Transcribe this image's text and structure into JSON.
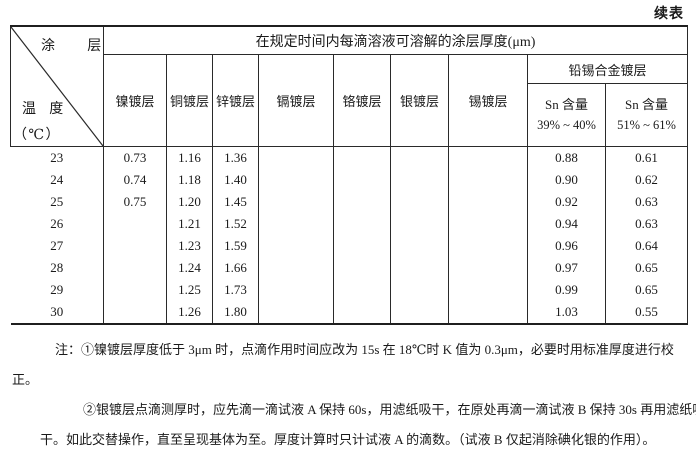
{
  "page": {
    "continuation_label": "续表"
  },
  "table": {
    "corner": {
      "top_label": "涂层",
      "bottom_label_line1": "温 度",
      "bottom_label_line2": "（℃）"
    },
    "span_header": "在规定时间内每滴溶液可溶解的涂层厚度(μm)",
    "column_headers": [
      "镍镀层",
      "铜镀层",
      "锌镀层",
      "镉镀层",
      "铬镀层",
      "银镀层",
      "锡镀层"
    ],
    "pbsn_group": {
      "label": "铅锡合金镀层",
      "sub_columns": [
        {
          "line1": "Sn 含量",
          "line2": "39% ~ 40%"
        },
        {
          "line1": "Sn 含量",
          "line2": "51% ~ 61%"
        }
      ]
    },
    "rows": [
      [
        "23",
        "0.73",
        "1.16",
        "1.36",
        "",
        "",
        "",
        "",
        "0.88",
        "0.61"
      ],
      [
        "24",
        "0.74",
        "1.18",
        "1.40",
        "",
        "",
        "",
        "",
        "0.90",
        "0.62"
      ],
      [
        "25",
        "0.75",
        "1.20",
        "1.45",
        "",
        "",
        "",
        "",
        "0.92",
        "0.63"
      ],
      [
        "26",
        "",
        "1.21",
        "1.52",
        "",
        "",
        "",
        "",
        "0.94",
        "0.63"
      ],
      [
        "27",
        "",
        "1.23",
        "1.59",
        "",
        "",
        "",
        "",
        "0.96",
        "0.64"
      ],
      [
        "28",
        "",
        "1.24",
        "1.66",
        "",
        "",
        "",
        "",
        "0.97",
        "0.65"
      ],
      [
        "29",
        "",
        "1.25",
        "1.73",
        "",
        "",
        "",
        "",
        "0.99",
        "0.65"
      ],
      [
        "30",
        "",
        "1.26",
        "1.80",
        "",
        "",
        "",
        "",
        "1.03",
        "0.55"
      ]
    ]
  },
  "notes": {
    "note1_line1": "注：①镍镀层厚度低于 3μm 时，点滴作用时间应改为 15s 在 18℃时 K 值为 0.3μm，必要时用标准厚度进行校",
    "note1_line2": "正。",
    "note2_line1": "②银镀层点滴测厚时，应先滴一滴试液 A 保持 60s，用滤纸吸干，在原处再滴一滴试液 B 保持 30s 再用滤纸吸",
    "note2_line2": "干。如此交替操作，直至呈现基体为至。厚度计算时只计试液 A 的滴数。（试液 B 仅起消除碘化银的作用）。"
  }
}
